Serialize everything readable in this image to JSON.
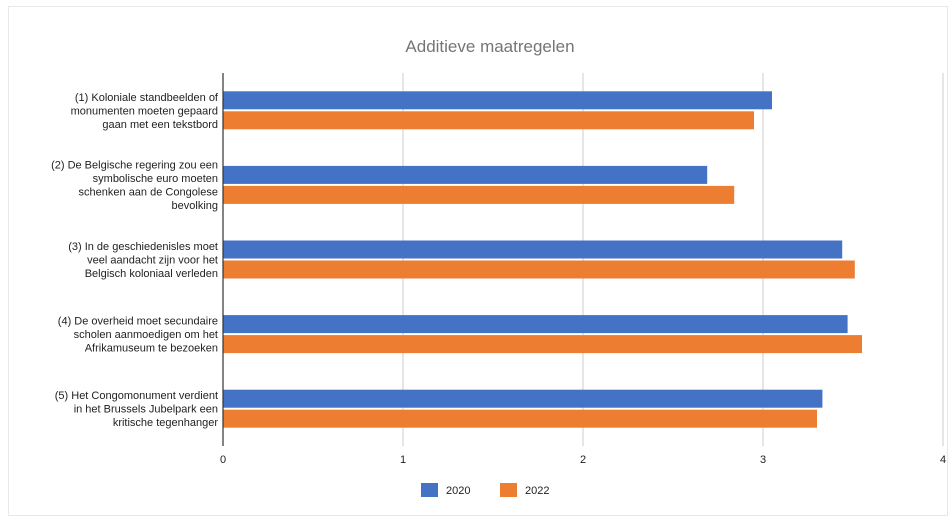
{
  "chart_data": {
    "type": "bar",
    "orientation": "horizontal",
    "title": "Additieve maatregelen",
    "categories": [
      [
        "(1) Koloniale standbeelden of",
        "monumenten moeten gepaard",
        "gaan met een tekstbord"
      ],
      [
        "(2) De Belgische regering zou een",
        "symbolische euro moeten",
        "schenken aan de Congolese",
        "bevolking"
      ],
      [
        "(3) In de geschiedenisles moet",
        "veel aandacht zijn voor het",
        "Belgisch koloniaal verleden"
      ],
      [
        "(4) De overheid moet secundaire",
        "scholen aanmoedigen om het",
        "Afrikamuseum te bezoeken"
      ],
      [
        "(5) Het Congomonument verdient",
        "in het Brussels Jubelpark een",
        "kritische tegenhanger"
      ]
    ],
    "series": [
      {
        "name": "2020",
        "color": "#4472c4",
        "values": [
          3.05,
          2.69,
          3.44,
          3.47,
          3.33
        ]
      },
      {
        "name": "2022",
        "color": "#ed7d31",
        "values": [
          2.95,
          2.84,
          3.51,
          3.55,
          3.3
        ]
      }
    ],
    "xlim": [
      0,
      4
    ],
    "xticks": [
      "0",
      "1",
      "2",
      "3",
      "4"
    ],
    "grid": true,
    "legend_position": "bottom"
  }
}
